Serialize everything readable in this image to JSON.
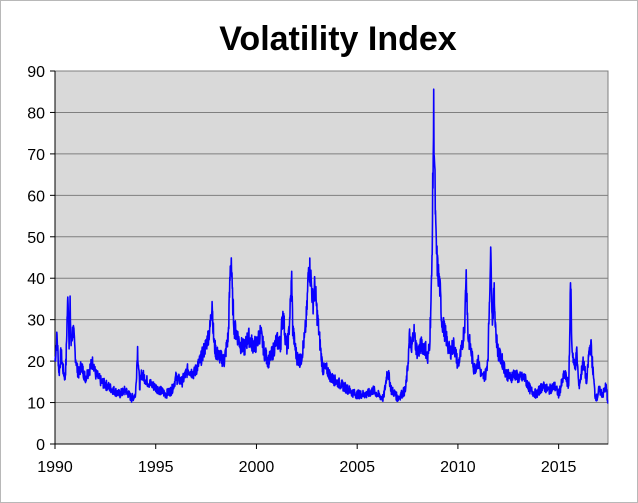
{
  "chart_data": {
    "type": "line",
    "title": "Volatility Index",
    "xlabel": "",
    "ylabel": "",
    "xlim": [
      1990,
      2017.45
    ],
    "ylim": [
      0,
      90
    ],
    "x_ticks": [
      1990,
      1995,
      2000,
      2005,
      2010,
      2015
    ],
    "y_ticks": [
      0,
      10,
      20,
      30,
      40,
      50,
      60,
      70,
      80,
      90
    ],
    "grid": "horizontal",
    "legend": "none",
    "colors": {
      "line": "#0a00ff",
      "plot_background": "#d9d9d9",
      "gridline": "#7f7f7f"
    },
    "series": [
      {
        "x": [
          1990.0,
          1990.1,
          1990.2,
          1990.3,
          1990.4,
          1990.5,
          1990.55,
          1990.6,
          1990.65,
          1990.7,
          1990.75,
          1990.8,
          1990.9,
          1991.0,
          1991.05,
          1991.1,
          1991.2,
          1991.3,
          1991.5,
          1991.7,
          1991.9,
          1992.0,
          1992.3,
          1992.6,
          1992.9,
          1993.2,
          1993.5,
          1993.8,
          1994.0,
          1994.1,
          1994.2,
          1994.3,
          1994.6,
          1994.9,
          1995.2,
          1995.5,
          1995.8,
          1996.0,
          1996.3,
          1996.6,
          1996.9,
          1997.2,
          1997.5,
          1997.7,
          1997.8,
          1997.85,
          1997.9,
          1998.0,
          1998.2,
          1998.4,
          1998.6,
          1998.7,
          1998.75,
          1998.8,
          1998.85,
          1998.9,
          1999.0,
          1999.2,
          1999.4,
          1999.6,
          1999.8,
          2000.0,
          2000.2,
          2000.4,
          2000.6,
          2000.8,
          2001.0,
          2001.2,
          2001.3,
          2001.5,
          2001.6,
          2001.7,
          2001.75,
          2001.8,
          2001.9,
          2002.0,
          2002.2,
          2002.4,
          2002.5,
          2002.55,
          2002.6,
          2002.7,
          2002.8,
          2002.9,
          2003.0,
          2003.1,
          2003.2,
          2003.3,
          2003.5,
          2003.7,
          2004.0,
          2004.3,
          2004.6,
          2004.9,
          2005.2,
          2005.5,
          2005.8,
          2006.0,
          2006.3,
          2006.4,
          2006.5,
          2006.7,
          2006.9,
          2007.0,
          2007.2,
          2007.4,
          2007.5,
          2007.6,
          2007.7,
          2007.8,
          2007.9,
          2008.0,
          2008.2,
          2008.4,
          2008.5,
          2008.6,
          2008.7,
          2008.75,
          2008.8,
          2008.85,
          2008.9,
          2008.95,
          2009.0,
          2009.1,
          2009.2,
          2009.3,
          2009.4,
          2009.5,
          2009.6,
          2009.8,
          2010.0,
          2010.1,
          2010.2,
          2010.35,
          2010.4,
          2010.45,
          2010.5,
          2010.6,
          2010.8,
          2011.0,
          2011.2,
          2011.4,
          2011.5,
          2011.6,
          2011.65,
          2011.7,
          2011.8,
          2011.9,
          2012.0,
          2012.2,
          2012.4,
          2012.6,
          2012.8,
          2013.0,
          2013.3,
          2013.6,
          2013.9,
          2014.2,
          2014.5,
          2014.8,
          2015.0,
          2015.3,
          2015.5,
          2015.6,
          2015.65,
          2015.7,
          2015.8,
          2015.9,
          2016.0,
          2016.1,
          2016.2,
          2016.4,
          2016.5,
          2016.6,
          2016.8,
          2016.9,
          2017.0,
          2017.2,
          2017.35,
          2017.45
        ],
        "values": [
          20,
          26,
          17,
          22,
          18,
          16,
          20,
          30,
          36,
          25,
          33,
          24,
          28,
          22,
          20,
          18,
          17,
          19,
          16,
          18,
          20,
          17,
          15,
          14,
          13,
          12,
          13,
          11,
          12,
          23,
          14,
          17,
          15,
          14,
          13,
          12,
          13,
          16,
          15,
          18,
          17,
          20,
          24,
          28,
          35,
          28,
          24,
          22,
          21,
          20,
          26,
          42,
          45,
          36,
          32,
          28,
          27,
          24,
          23,
          26,
          24,
          24,
          27,
          22,
          20,
          22,
          25,
          24,
          32,
          23,
          26,
          35,
          40,
          28,
          24,
          21,
          20,
          26,
          32,
          38,
          44,
          40,
          34,
          38,
          32,
          27,
          22,
          18,
          18,
          16,
          15,
          14,
          13,
          12,
          12,
          12,
          13,
          12,
          11,
          14,
          18,
          13,
          12,
          11,
          12,
          13,
          18,
          26,
          22,
          28,
          24,
          22,
          24,
          23,
          20,
          25,
          40,
          60,
          80,
          65,
          50,
          45,
          42,
          38,
          30,
          28,
          26,
          24,
          22,
          24,
          19,
          21,
          23,
          30,
          42,
          36,
          26,
          24,
          18,
          20,
          16,
          17,
          22,
          42,
          46,
          30,
          36,
          26,
          22,
          20,
          17,
          16,
          17,
          16,
          16,
          13,
          12,
          14,
          13,
          14,
          12,
          17,
          14,
          40,
          24,
          22,
          18,
          22,
          14,
          16,
          20,
          15,
          22,
          24,
          12,
          11,
          13,
          12,
          14,
          10
        ]
      }
    ]
  }
}
